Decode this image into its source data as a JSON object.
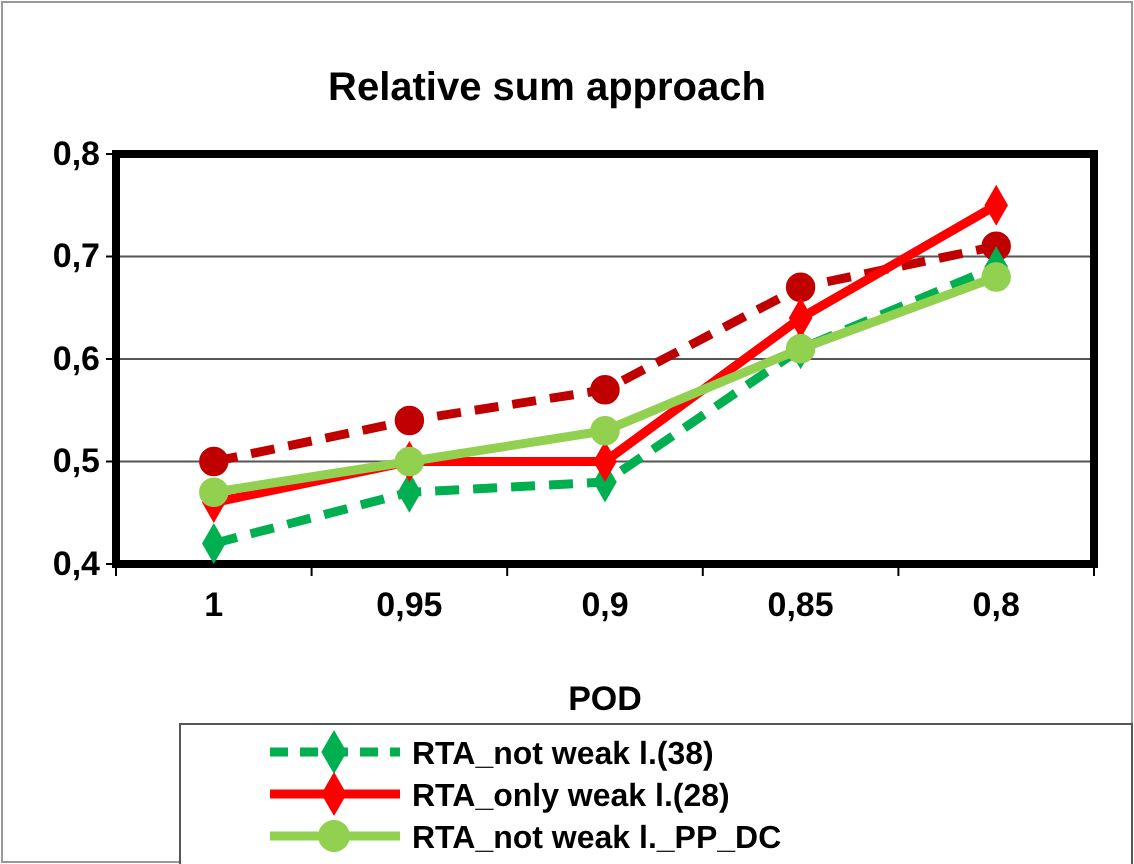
{
  "chart_data": {
    "type": "line",
    "title": "Relative sum approach",
    "xlabel": "POD",
    "categories": [
      "1",
      "0,95",
      "0,9",
      "0,85",
      "0,8"
    ],
    "ylim": [
      0.4,
      0.8
    ],
    "yticks": [
      {
        "value": 0.4,
        "label": "0,4"
      },
      {
        "value": 0.5,
        "label": "0,5"
      },
      {
        "value": 0.6,
        "label": "0,6"
      },
      {
        "value": 0.7,
        "label": "0,7"
      },
      {
        "value": 0.8,
        "label": "0,8"
      }
    ],
    "grid": "y",
    "legend": "bottom",
    "series": [
      {
        "color": "#c00000",
        "values": [
          0.5,
          0.54,
          0.57,
          0.67,
          0.71
        ],
        "marker": "circle",
        "line_style": "dashed"
      },
      {
        "name": "RTA_not weak l.(38)",
        "color": "#00b050",
        "values": [
          0.42,
          0.47,
          0.48,
          0.61,
          0.69
        ],
        "marker": "diamond",
        "line_style": "dashed"
      },
      {
        "name": "RTA_only weak l.(28)",
        "color": "#ff0000",
        "values": [
          0.46,
          0.5,
          0.5,
          0.64,
          0.75
        ],
        "marker": "diamond",
        "line_style": "solid"
      },
      {
        "name": "RTA_not weak l._PP_DC",
        "color": "#92d050",
        "values": [
          0.47,
          0.5,
          0.53,
          0.61,
          0.68
        ],
        "marker": "circle",
        "line_style": "solid"
      }
    ]
  }
}
